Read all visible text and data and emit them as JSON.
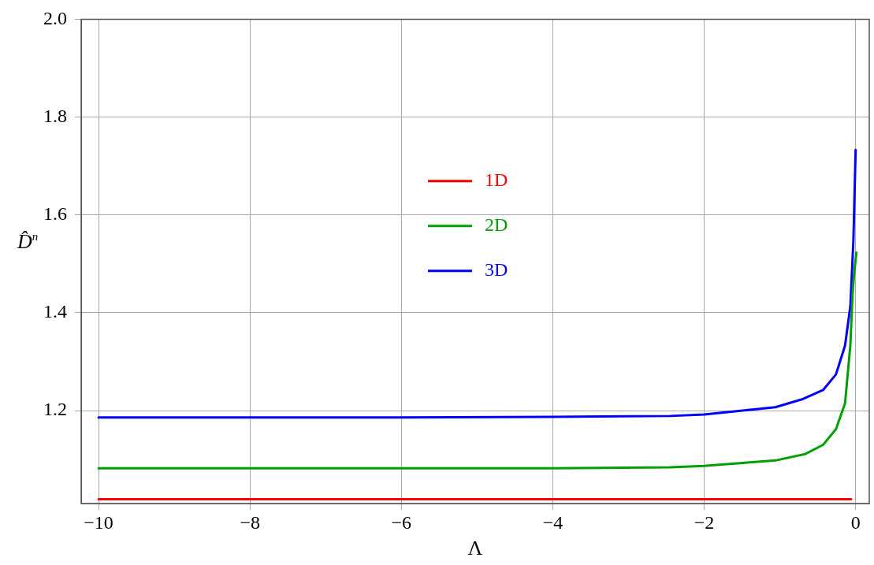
{
  "chart_data": {
    "type": "line",
    "xlabel": "Λ",
    "ylabel": "D̂$^{n}$",
    "xlim": [
      -10.23,
      0.18
    ],
    "xticks": [
      {
        "value": -10,
        "label": "−10"
      },
      {
        "value": -8,
        "label": "−8"
      },
      {
        "value": -6,
        "label": "−6"
      },
      {
        "value": -4,
        "label": "−4"
      },
      {
        "value": -2,
        "label": "−2"
      },
      {
        "value": 0,
        "label": "0"
      }
    ],
    "ylim": [
      1.01,
      2.0
    ],
    "yticks": [
      {
        "value": 1.2,
        "label": "1.2"
      },
      {
        "value": 1.4,
        "label": "1.4"
      },
      {
        "value": 1.6,
        "label": "1.6"
      },
      {
        "value": 1.8,
        "label": "1.8"
      },
      {
        "value": 2.0,
        "label": "2.0"
      }
    ],
    "grid": true,
    "legend": "center",
    "marker": "none",
    "line_style": "solid",
    "series": [
      {
        "name": "1D",
        "color": "#ff0000",
        "x": [
          -10,
          -8,
          -6,
          -4,
          -2,
          -1,
          -0.5,
          -0.06
        ],
        "values": [
          1.019,
          1.019,
          1.019,
          1.019,
          1.019,
          1.019,
          1.019,
          1.019
        ]
      },
      {
        "name": "2D",
        "color": "#00a000",
        "x": [
          -10,
          -8,
          -6,
          -4,
          -2.45,
          -2,
          -1.06,
          -0.67,
          -0.43,
          -0.26,
          -0.14,
          -0.07,
          -0.04,
          -0.02,
          0.01
        ],
        "values": [
          1.082,
          1.082,
          1.082,
          1.082,
          1.084,
          1.087,
          1.098,
          1.111,
          1.13,
          1.162,
          1.215,
          1.333,
          1.44,
          1.48,
          1.523
        ]
      },
      {
        "name": "3D",
        "color": "#0000ff",
        "x": [
          -10,
          -8,
          -6,
          -4,
          -2.45,
          -2,
          -1.06,
          -0.71,
          -0.43,
          -0.26,
          -0.14,
          -0.07,
          -0.03,
          0
        ],
        "values": [
          1.186,
          1.186,
          1.186,
          1.187,
          1.189,
          1.192,
          1.207,
          1.223,
          1.242,
          1.274,
          1.333,
          1.413,
          1.546,
          1.733
        ]
      }
    ]
  }
}
